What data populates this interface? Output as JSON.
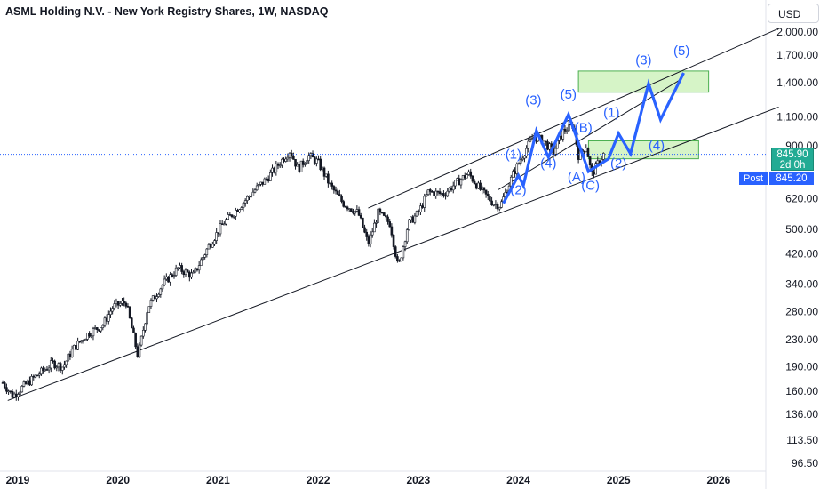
{
  "chart_data": {
    "type": "candlestick",
    "title": "ASML Holding N.V. - New York Registry Shares, 1W, NASDAQ",
    "currency": "USD",
    "y_scale": "log",
    "y_ticks": [
      "2,000.00",
      "1,700.00",
      "1,400.00",
      "1,100.00",
      "900.00",
      "620.00",
      "500.00",
      "420.00",
      "340.00",
      "280.00",
      "230.00",
      "190.00",
      "160.00",
      "136.00",
      "113.50",
      "96.50"
    ],
    "y_tick_values": [
      2000,
      1700,
      1400,
      1100,
      900,
      620,
      500,
      420,
      340,
      280,
      230,
      190,
      160,
      136,
      113.5,
      96.5
    ],
    "x_ticks": [
      "2019",
      "2020",
      "2021",
      "2022",
      "2023",
      "2024",
      "2025",
      "2026"
    ],
    "x_tick_values": [
      2019,
      2020,
      2021,
      2022,
      2023,
      2024,
      2025,
      2026
    ],
    "price_series": [
      {
        "t": 2018.85,
        "v": 170
      },
      {
        "t": 2018.95,
        "v": 155
      },
      {
        "t": 2019.05,
        "v": 165
      },
      {
        "t": 2019.2,
        "v": 180
      },
      {
        "t": 2019.35,
        "v": 195
      },
      {
        "t": 2019.45,
        "v": 190
      },
      {
        "t": 2019.55,
        "v": 215
      },
      {
        "t": 2019.7,
        "v": 240
      },
      {
        "t": 2019.85,
        "v": 255
      },
      {
        "t": 2019.95,
        "v": 290
      },
      {
        "t": 2020.08,
        "v": 300
      },
      {
        "t": 2020.2,
        "v": 205
      },
      {
        "t": 2020.3,
        "v": 290
      },
      {
        "t": 2020.45,
        "v": 340
      },
      {
        "t": 2020.6,
        "v": 380
      },
      {
        "t": 2020.75,
        "v": 360
      },
      {
        "t": 2020.9,
        "v": 440
      },
      {
        "t": 2021.05,
        "v": 520
      },
      {
        "t": 2021.2,
        "v": 580
      },
      {
        "t": 2021.35,
        "v": 650
      },
      {
        "t": 2021.5,
        "v": 720
      },
      {
        "t": 2021.62,
        "v": 800
      },
      {
        "t": 2021.72,
        "v": 870
      },
      {
        "t": 2021.8,
        "v": 760
      },
      {
        "t": 2021.9,
        "v": 840
      },
      {
        "t": 2022.0,
        "v": 800
      },
      {
        "t": 2022.12,
        "v": 680
      },
      {
        "t": 2022.25,
        "v": 600
      },
      {
        "t": 2022.4,
        "v": 560
      },
      {
        "t": 2022.5,
        "v": 450
      },
      {
        "t": 2022.6,
        "v": 560
      },
      {
        "t": 2022.72,
        "v": 520
      },
      {
        "t": 2022.8,
        "v": 380
      },
      {
        "t": 2022.9,
        "v": 520
      },
      {
        "t": 2023.0,
        "v": 560
      },
      {
        "t": 2023.1,
        "v": 650
      },
      {
        "t": 2023.25,
        "v": 640
      },
      {
        "t": 2023.4,
        "v": 700
      },
      {
        "t": 2023.5,
        "v": 740
      },
      {
        "t": 2023.62,
        "v": 660
      },
      {
        "t": 2023.75,
        "v": 600
      },
      {
        "t": 2023.82,
        "v": 590
      },
      {
        "t": 2023.95,
        "v": 740
      },
      {
        "t": 2024.05,
        "v": 850
      },
      {
        "t": 2024.15,
        "v": 960
      },
      {
        "t": 2024.25,
        "v": 930
      },
      {
        "t": 2024.35,
        "v": 860
      },
      {
        "t": 2024.45,
        "v": 1000
      },
      {
        "t": 2024.55,
        "v": 1040
      },
      {
        "t": 2024.6,
        "v": 840
      },
      {
        "t": 2024.68,
        "v": 900
      },
      {
        "t": 2024.73,
        "v": 730
      },
      {
        "t": 2024.8,
        "v": 800
      },
      {
        "t": 2024.85,
        "v": 846
      }
    ],
    "channel_lines": [
      {
        "name": "outer-upper",
        "points": [
          {
            "t": 2022.5,
            "v": 580
          },
          {
            "t": 2026.6,
            "v": 2050
          }
        ]
      },
      {
        "name": "outer-lower",
        "points": [
          {
            "t": 2018.9,
            "v": 150
          },
          {
            "t": 2026.6,
            "v": 1180
          }
        ]
      },
      {
        "name": "inner-upper",
        "points": [
          {
            "t": 2023.8,
            "v": 660
          },
          {
            "t": 2025.6,
            "v": 1420
          }
        ]
      }
    ],
    "forecast_path": [
      {
        "t": 2023.85,
        "v": 600
      },
      {
        "t": 2024.0,
        "v": 730
      },
      {
        "t": 2024.05,
        "v": 680
      },
      {
        "t": 2024.18,
        "v": 1000
      },
      {
        "t": 2024.3,
        "v": 830
      },
      {
        "t": 2024.5,
        "v": 1120
      },
      {
        "t": 2024.7,
        "v": 750
      },
      {
        "t": 2024.9,
        "v": 820
      },
      {
        "t": 2025.0,
        "v": 980
      },
      {
        "t": 2025.12,
        "v": 850
      },
      {
        "t": 2025.3,
        "v": 1390
      },
      {
        "t": 2025.42,
        "v": 1080
      },
      {
        "t": 2025.65,
        "v": 1500
      }
    ],
    "target_zones": [
      {
        "t1": 2024.6,
        "t2": 2025.9,
        "v1": 1310,
        "v2": 1520
      },
      {
        "t1": 2024.7,
        "t2": 2025.8,
        "v1": 820,
        "v2": 930
      }
    ],
    "wave_labels": [
      {
        "text": "(1)",
        "t": 2023.95,
        "v": 820
      },
      {
        "text": "(2)",
        "t": 2024.0,
        "v": 640
      },
      {
        "text": "(3)",
        "t": 2024.15,
        "v": 1200
      },
      {
        "text": "(4)",
        "t": 2024.3,
        "v": 770
      },
      {
        "text": "(5)",
        "t": 2024.5,
        "v": 1250
      },
      {
        "text": "(B)",
        "t": 2024.65,
        "v": 990
      },
      {
        "text": "(A)",
        "t": 2024.58,
        "v": 700
      },
      {
        "text": "(C)",
        "t": 2024.72,
        "v": 660
      },
      {
        "text": "(1)",
        "t": 2024.93,
        "v": 1100
      },
      {
        "text": "(2)",
        "t": 2025.0,
        "v": 770
      },
      {
        "text": "(3)",
        "t": 2025.25,
        "v": 1590
      },
      {
        "text": "(4)",
        "t": 2025.38,
        "v": 875
      },
      {
        "text": "(5)",
        "t": 2025.63,
        "v": 1700
      }
    ],
    "last_price": {
      "value": "845.90",
      "countdown": "2d 0h",
      "v": 845.9
    },
    "post_market": {
      "label": "Post",
      "value": "845.20"
    },
    "grid": false,
    "legend": "none"
  },
  "colors": {
    "candle": "#131722",
    "forecast": "#2962ff",
    "wave_label": "#2962ff",
    "zone_fill": "#c8f0b4",
    "zone_stroke": "#4caf50",
    "channel": "#131722",
    "last_price_badge": "#22ab94",
    "post_badge": "#2962ff",
    "price_line": "#2962ff"
  }
}
